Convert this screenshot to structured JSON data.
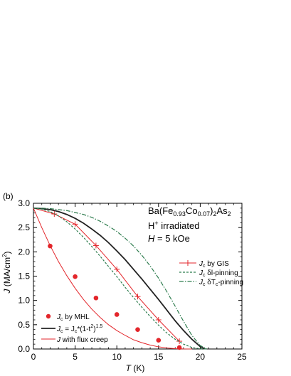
{
  "panel_label": "(b)",
  "annotation": {
    "compound": {
      "base": "Ba(Fe",
      "sub1": "0.93",
      "mid": "Co",
      "sub2": "0.07",
      "close": ")",
      "sub3": "2",
      "end": "As",
      "sub4": "2"
    },
    "irradiation": {
      "ion": "H",
      "charge": "+",
      "text": " irradiated"
    },
    "field": {
      "var": "H",
      "text": " = 5 kOe"
    }
  },
  "colors": {
    "red": "#e3262b",
    "black": "#222222",
    "green": "#2f7d4f",
    "axis": "#000000"
  },
  "chart_data": {
    "type": "line",
    "xlabel": {
      "var": "T",
      "unit": " (K)"
    },
    "ylabel": {
      "var": "J",
      "unit": " (MA/cm",
      "sup": "2",
      "close": ")"
    },
    "xlim": [
      0,
      25
    ],
    "ylim": [
      0,
      3.0
    ],
    "xticks": [
      "0",
      "5",
      "10",
      "15",
      "20",
      "25"
    ],
    "yticks": [
      "0.0",
      "0.5",
      "1.0",
      "1.5",
      "2.0",
      "2.5",
      "3.0"
    ],
    "legend_top": [
      {
        "key": "gis",
        "sym": "J",
        "sub": "c",
        "text": " by GIS"
      },
      {
        "key": "dl",
        "sym": "J",
        "sub": "c",
        "text": " δl-pinning"
      },
      {
        "key": "dtc",
        "sym": "J",
        "sub": "c",
        "text": " δT",
        "sub2": "c",
        "text2": "-pinning"
      }
    ],
    "legend_bottom": [
      {
        "key": "mhl",
        "sym": "J",
        "sub": "c",
        "text": " by MHL"
      },
      {
        "key": "fit",
        "sym": "J",
        "sub": "c",
        "text": " = J",
        "sub2": "c",
        "text2": "*(1-t",
        "sup": "2",
        "text3": ")",
        "sup2": "1.5"
      },
      {
        "key": "creep",
        "sym": "J",
        "text": " with flux creep"
      }
    ],
    "series": [
      {
        "key": "mhl",
        "style": "markers",
        "x": [
          2,
          5,
          7.5,
          10,
          12.5,
          15,
          17.5
        ],
        "y": [
          2.12,
          1.49,
          1.05,
          0.71,
          0.4,
          0.18,
          0.03
        ]
      },
      {
        "key": "gis",
        "style": "line-plus",
        "x": [
          0,
          2.5,
          5,
          7.5,
          10,
          12.5,
          15,
          17.5
        ],
        "y": [
          2.9,
          2.78,
          2.57,
          2.13,
          1.64,
          1.08,
          0.6,
          0.16
        ]
      },
      {
        "key": "fit",
        "style": "solid-black",
        "x": [
          0,
          1,
          2,
          3,
          4,
          5,
          6,
          7,
          8,
          9,
          10,
          11,
          12,
          13,
          14,
          15,
          16,
          17,
          18,
          19,
          20,
          20.6
        ],
        "y": [
          2.9,
          2.89,
          2.87,
          2.83,
          2.77,
          2.69,
          2.59,
          2.47,
          2.34,
          2.19,
          2.02,
          1.84,
          1.64,
          1.44,
          1.23,
          1.02,
          0.8,
          0.58,
          0.38,
          0.2,
          0.05,
          0.0
        ]
      },
      {
        "key": "dl",
        "style": "dashed-green",
        "x": [
          0,
          1,
          2,
          3,
          4,
          5,
          6,
          7,
          8,
          9,
          10,
          11,
          12,
          13,
          14,
          15,
          16,
          17,
          18,
          19,
          20,
          20.8
        ],
        "y": [
          2.9,
          2.88,
          2.83,
          2.74,
          2.62,
          2.47,
          2.3,
          2.11,
          1.91,
          1.7,
          1.49,
          1.27,
          1.06,
          0.86,
          0.67,
          0.49,
          0.33,
          0.2,
          0.1,
          0.03,
          0.005,
          0.0
        ]
      },
      {
        "key": "dtc",
        "style": "dashdot-green",
        "x": [
          0,
          1,
          2,
          3,
          4,
          5,
          6,
          7,
          8,
          9,
          10,
          11,
          12,
          13,
          14,
          15,
          16,
          17,
          18,
          19,
          20,
          20.8
        ],
        "y": [
          2.9,
          2.9,
          2.89,
          2.87,
          2.85,
          2.81,
          2.77,
          2.71,
          2.63,
          2.53,
          2.42,
          2.28,
          2.12,
          1.93,
          1.71,
          1.46,
          1.18,
          0.88,
          0.57,
          0.28,
          0.07,
          0.0
        ]
      },
      {
        "key": "creep",
        "style": "solid-red",
        "x": [
          0,
          1,
          2,
          3,
          4,
          5,
          6,
          7,
          8,
          9,
          10,
          11,
          12,
          13,
          14,
          15,
          16,
          17,
          18,
          19
        ],
        "y": [
          2.9,
          2.5,
          2.13,
          1.8,
          1.51,
          1.25,
          1.02,
          0.82,
          0.65,
          0.5,
          0.38,
          0.28,
          0.19,
          0.13,
          0.08,
          0.045,
          0.02,
          0.008,
          0.002,
          0.0
        ]
      }
    ]
  }
}
